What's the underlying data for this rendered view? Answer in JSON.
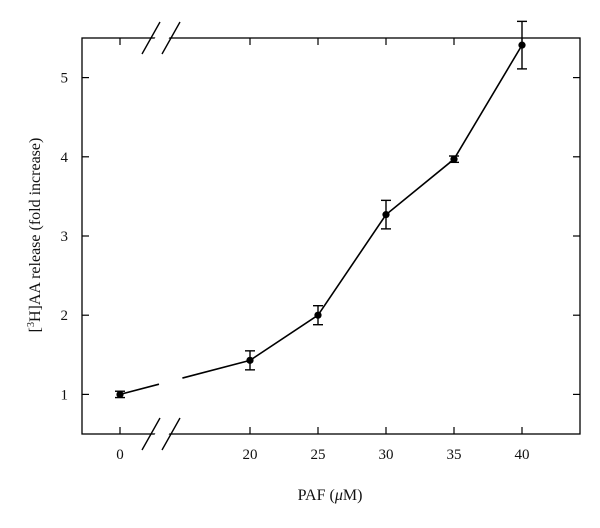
{
  "chart_data": {
    "type": "line",
    "xlabel_parts": {
      "prefix": "PAF (",
      "unit_italic": "μ",
      "suffix": "M)"
    },
    "ylabel_parts": {
      "open": "[",
      "sup": "3",
      "rest": "H]AA release (fold increase)"
    },
    "x": [
      0,
      20,
      25,
      30,
      35,
      40
    ],
    "y": [
      1.0,
      1.43,
      2.0,
      3.27,
      3.97,
      5.41
    ],
    "yerr": [
      0.04,
      0.12,
      0.12,
      0.18,
      0.04,
      0.3
    ],
    "x_tick_labels": [
      "0",
      "20",
      "25",
      "30",
      "35",
      "40"
    ],
    "y_tick_labels": [
      "1",
      "2",
      "3",
      "4",
      "5"
    ],
    "y_ticks": [
      1,
      2,
      3,
      4,
      5
    ],
    "ylim": [
      0.5,
      5.5
    ],
    "axis_break": {
      "between_x": [
        0,
        20
      ]
    },
    "grid": false,
    "legend": "none"
  }
}
